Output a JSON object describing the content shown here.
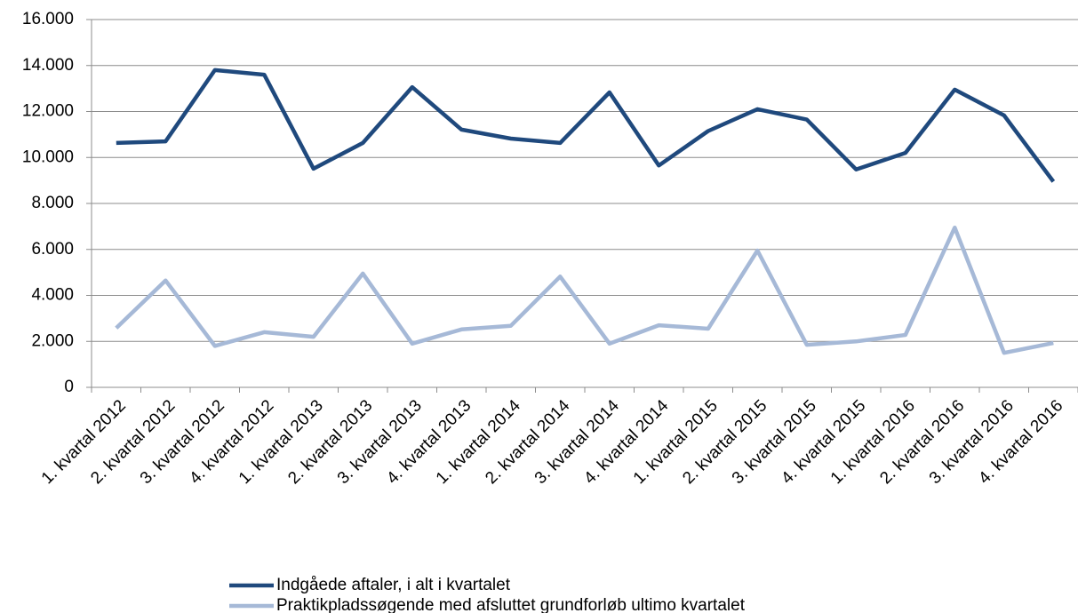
{
  "chart_data": {
    "type": "line",
    "categories": [
      "1. kvartal 2012",
      "2. kvartal 2012",
      "3. kvartal 2012",
      "4. kvartal 2012",
      "1. kvartal 2013",
      "2. kvartal 2013",
      "3. kvartal 2013",
      "4. kvartal 2013",
      "1. kvartal 2014",
      "2. kvartal 2014",
      "3. kvartal 2014",
      "4. kvartal 2014",
      "1. kvartal 2015",
      "2. kvartal 2015",
      "3. kvartal 2015",
      "4. kvartal 2015",
      "1. kvartal 2016",
      "2. kvartal 2016",
      "3. kvartal 2016",
      "4. kvartal 2016"
    ],
    "series": [
      {
        "name": "Indgåede aftaler, i alt i kvartalet",
        "color": "#1f497d",
        "values": [
          10630,
          10700,
          13800,
          13600,
          9510,
          10630,
          13060,
          11210,
          10820,
          10630,
          12830,
          9650,
          11150,
          12100,
          11650,
          9480,
          10200,
          12950,
          11830,
          8950
        ]
      },
      {
        "name": "Praktikpladssøgende med afsluttet grundforløb ultimo kvartalet",
        "color": "#a6b9d7",
        "values": [
          2580,
          4650,
          1800,
          2400,
          2200,
          4950,
          1900,
          2520,
          2680,
          4820,
          1900,
          2700,
          2550,
          5950,
          1850,
          2000,
          2280,
          6950,
          1500,
          1930
        ]
      }
    ],
    "ylim": [
      0,
      16000
    ],
    "yticks": [
      0,
      {
        "value": 2000,
        "label": "2.000"
      },
      {
        "value": 4000,
        "label": "4.000"
      },
      {
        "value": 6000,
        "label": "6.000"
      },
      {
        "value": 8000,
        "label": "8.000"
      },
      {
        "value": 10000,
        "label": "10.000"
      },
      {
        "value": 12000,
        "label": "12.000"
      },
      {
        "value": 14000,
        "label": "14.000"
      },
      {
        "value": 16000,
        "label": "16.000"
      }
    ],
    "grid": true,
    "legend": "bottom"
  }
}
